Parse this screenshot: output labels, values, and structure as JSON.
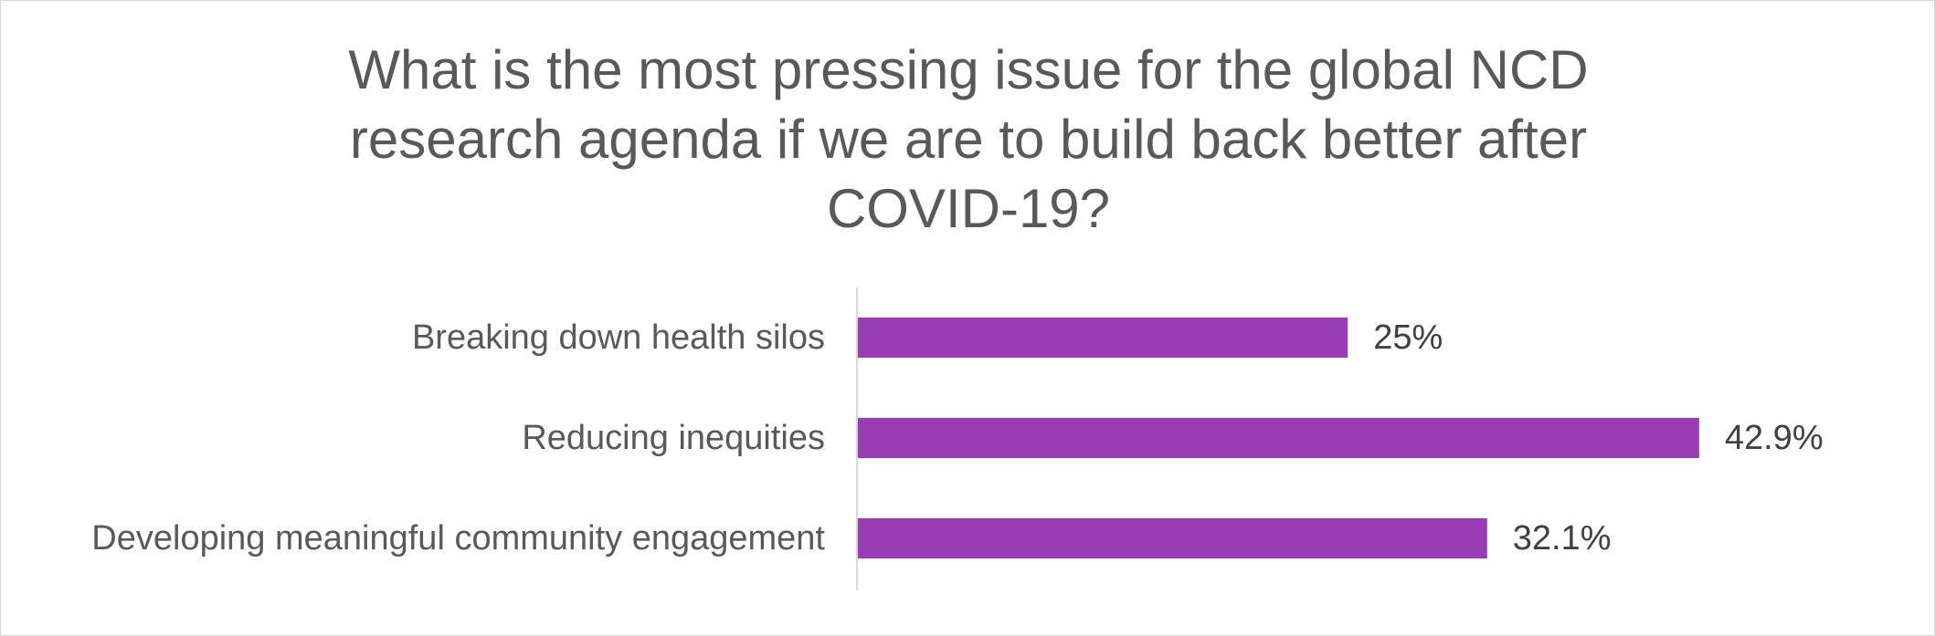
{
  "chart_data": {
    "type": "bar",
    "orientation": "horizontal",
    "title": "What is the most pressing issue for the global NCD research agenda if we are to build back better after COVID-19?",
    "categories": [
      "Breaking down health silos",
      "Reducing inequities",
      "Developing meaningful community engagement"
    ],
    "values": [
      25,
      42.9,
      32.1
    ],
    "data_labels": [
      "25%",
      "42.9%",
      "32.1%"
    ],
    "unit": "%",
    "xlim": [
      0,
      45
    ],
    "grid": false,
    "legend": "none",
    "bar_color": "#993DB5",
    "axis_color": "#D9D9D9"
  }
}
